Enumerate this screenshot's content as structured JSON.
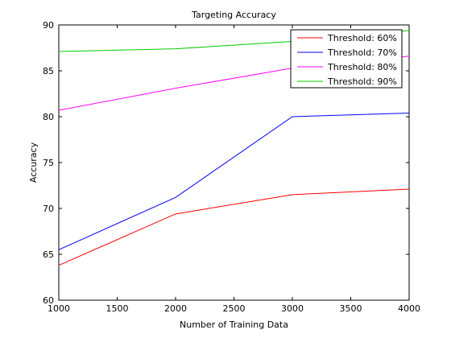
{
  "chart_data": {
    "type": "line",
    "title": "Targeting Accuracy",
    "xlabel": "Number of Training Data",
    "ylabel": "Accuracy",
    "x": [
      1000,
      2000,
      3000,
      4000
    ],
    "xlim": [
      1000,
      4000
    ],
    "ylim": [
      60,
      90
    ],
    "xticks": [
      1000,
      1500,
      2000,
      2500,
      3000,
      3500,
      4000
    ],
    "yticks": [
      60,
      65,
      70,
      75,
      80,
      85,
      90
    ],
    "xtick_labels": [
      "1000",
      "1500",
      "2000",
      "2500",
      "3000",
      "3500",
      "4000"
    ],
    "ytick_labels": [
      "60",
      "65",
      "70",
      "75",
      "80",
      "85",
      "90"
    ],
    "grid": false,
    "legend_position": "top-right",
    "series": [
      {
        "name": "Threshold: 60%",
        "color": "#ff0000",
        "values": [
          63.8,
          69.4,
          71.5,
          72.1
        ]
      },
      {
        "name": "Threshold: 70%",
        "color": "#0000ff",
        "values": [
          65.5,
          71.2,
          80.0,
          80.4
        ]
      },
      {
        "name": "Threshold: 80%",
        "color": "#ff00ff",
        "values": [
          80.7,
          83.1,
          85.3,
          86.6
        ]
      },
      {
        "name": "Threshold: 90%",
        "color": "#00cc00",
        "values": [
          87.1,
          87.4,
          88.2,
          89.4
        ]
      }
    ]
  }
}
